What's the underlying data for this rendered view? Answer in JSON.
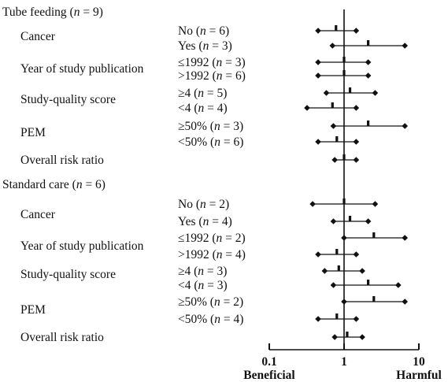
{
  "chart_data": {
    "type": "forest",
    "x_scale": "log",
    "xlim": [
      0.1,
      10
    ],
    "x_ticks": [
      "0.1",
      "1",
      "10"
    ],
    "x_left_label": "Beneficial",
    "x_right_label": "Harmful",
    "groups": [
      {
        "title": "Tube feeding (n = 9)",
        "title_parts": [
          "Tube feeding (",
          "n",
          " = 9)"
        ],
        "categories": [
          {
            "label": "Cancer",
            "rows": [
              {
                "sub": [
                  "No (",
                  "n",
                  " = 6)"
                ],
                "point": 0.78,
                "lo": 0.45,
                "hi": 1.45
              },
              {
                "sub": [
                  "Yes (",
                  "n",
                  " = 3)"
                ],
                "point": 2.1,
                "lo": 0.7,
                "hi": 6.5
              }
            ]
          },
          {
            "label": "Year of study publication",
            "rows": [
              {
                "sub": [
                  "≤1992 (",
                  "n",
                  " = 3)"
                ],
                "point": 1.0,
                "lo": 0.45,
                "hi": 2.1
              },
              {
                "sub": [
                  ">1992 (",
                  "n",
                  " = 6)"
                ],
                "point": 1.0,
                "lo": 0.45,
                "hi": 2.1
              }
            ]
          },
          {
            "label": "Study-quality score",
            "rows": [
              {
                "sub": [
                  "≥4 (",
                  "n",
                  " = 5)"
                ],
                "point": 1.2,
                "lo": 0.58,
                "hi": 2.6
              },
              {
                "sub": [
                  "<4 (",
                  "n",
                  " = 4)"
                ],
                "point": 0.7,
                "lo": 0.32,
                "hi": 1.45
              }
            ]
          },
          {
            "label": "PEM",
            "rows": [
              {
                "sub": [
                  "≥50% (",
                  "n",
                  " = 3)"
                ],
                "point": 2.1,
                "lo": 0.72,
                "hi": 6.5
              },
              {
                "sub": [
                  "<50% (",
                  "n",
                  " = 6)"
                ],
                "point": 0.8,
                "lo": 0.45,
                "hi": 1.45
              }
            ]
          },
          {
            "label": "Overall risk ratio",
            "rows": [
              {
                "sub": null,
                "point": 1.0,
                "lo": 0.75,
                "hi": 1.45
              }
            ]
          }
        ]
      },
      {
        "title": "Standard care (n = 6)",
        "title_parts": [
          "Standard care  (",
          "n",
          " = 6)"
        ],
        "categories": [
          {
            "label": "Cancer",
            "rows": [
              {
                "sub": [
                  "No (",
                  "n",
                  " = 2)"
                ],
                "point": 1.0,
                "lo": 0.38,
                "hi": 2.6
              },
              {
                "sub": [
                  "Yes (",
                  "n",
                  " = 4)"
                ],
                "point": 1.2,
                "lo": 0.72,
                "hi": 2.1
              }
            ]
          },
          {
            "label": "Year of study publication",
            "rows": [
              {
                "sub": [
                  "≤1992 (",
                  "n",
                  " = 2)"
                ],
                "point": 2.5,
                "lo": 1.0,
                "hi": 6.5
              },
              {
                "sub": [
                  ">1992  (",
                  "n",
                  " = 4)"
                ],
                "point": 0.8,
                "lo": 0.45,
                "hi": 1.45
              }
            ]
          },
          {
            "label": "Study-quality score",
            "rows": [
              {
                "sub": [
                  "≥4 (",
                  "n",
                  " = 3)"
                ],
                "point": 0.85,
                "lo": 0.55,
                "hi": 1.75
              }
            ]
          },
          {
            "label": "",
            "rows": [
              {
                "sub": [
                  "<4 (",
                  "n",
                  " = 3)"
                ],
                "point": 2.1,
                "lo": 0.72,
                "hi": 5.3
              }
            ]
          },
          {
            "label": "PEM",
            "rows": [
              {
                "sub": [
                  "≥50% (",
                  "n",
                  " = 2)"
                ],
                "point": 2.5,
                "lo": 1.0,
                "hi": 6.5
              },
              {
                "sub": [
                  "<50% (",
                  "n",
                  " = 4)"
                ],
                "point": 0.8,
                "lo": 0.45,
                "hi": 1.45
              }
            ]
          },
          {
            "label": "Overall risk ratio",
            "rows": [
              {
                "sub": null,
                "point": 1.1,
                "lo": 0.75,
                "hi": 1.75
              }
            ]
          }
        ]
      }
    ]
  }
}
